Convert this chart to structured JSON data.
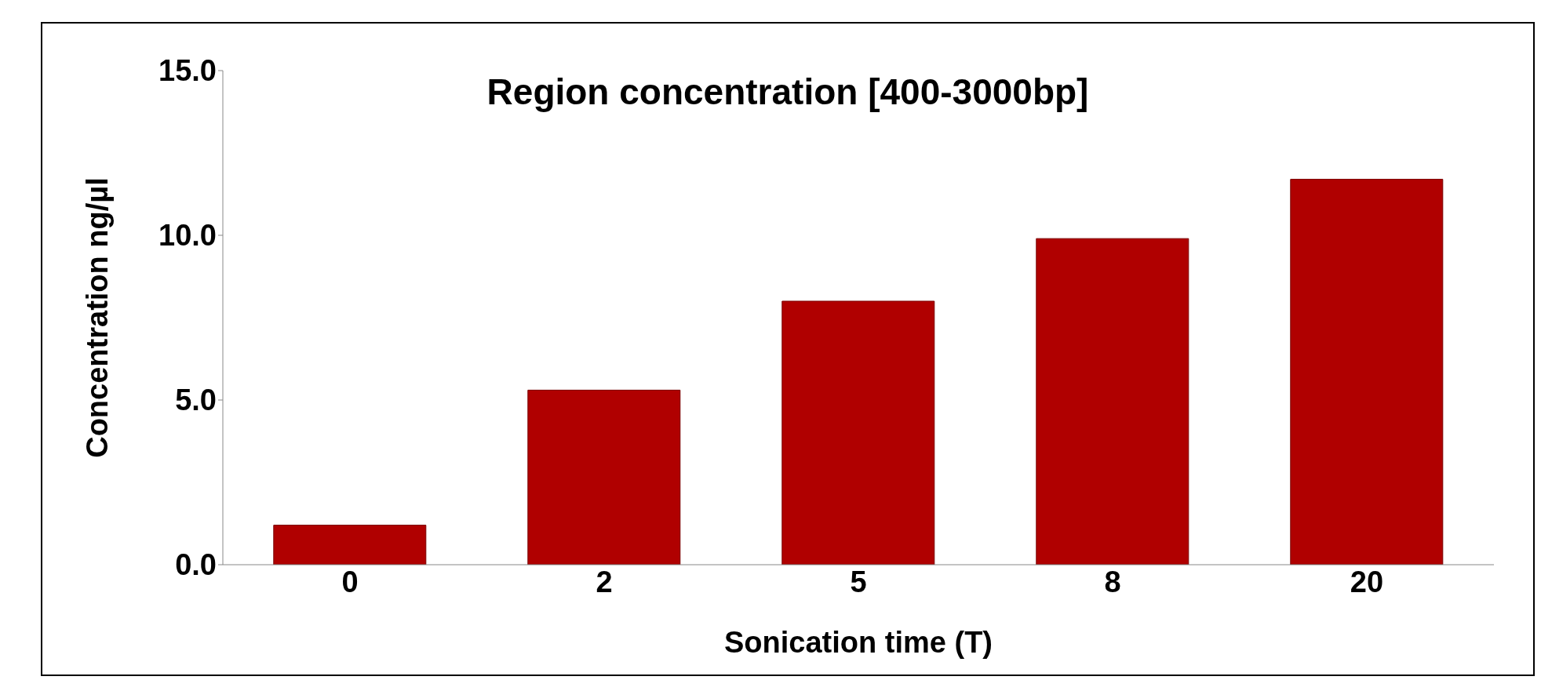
{
  "chart_data": {
    "type": "bar",
    "title": "Region concentration [400-3000bp]",
    "xlabel": "Sonication time (T)",
    "ylabel": "Concentration ng/µl",
    "categories": [
      "0",
      "2",
      "5",
      "8",
      "20"
    ],
    "values": [
      1.2,
      5.3,
      8.0,
      9.9,
      11.7
    ],
    "color": "#b00000",
    "ylim": [
      0,
      15
    ],
    "yticks": [
      {
        "value": 0,
        "label": "0.0"
      },
      {
        "value": 5,
        "label": "5.0"
      },
      {
        "value": 10,
        "label": "10.0"
      },
      {
        "value": 15,
        "label": "15.0"
      }
    ],
    "grid": false,
    "legend": false
  }
}
